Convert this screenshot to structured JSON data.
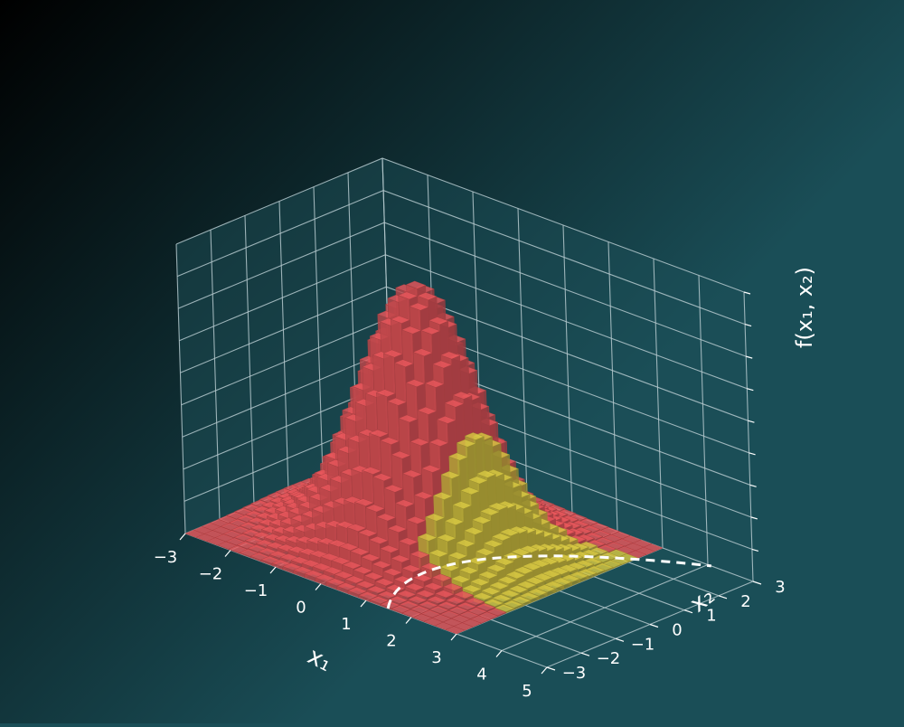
{
  "colors": {
    "background_dark": "#000000",
    "background_light": "#1a4e57",
    "pane_fill": "#1d5058",
    "grid": "#b4c8cc",
    "bar_outside": "#e8575c",
    "bar_inside": "#d8c843",
    "boundary": "#ffffff"
  },
  "chart_data": {
    "type": "bar3d",
    "title": "",
    "xlabel": "x₁",
    "ylabel": "x₂",
    "zlabel": "f(x₁, x₂)",
    "xlim": [
      -3,
      5
    ],
    "ylim": [
      -3,
      3
    ],
    "xticks": [
      "−3",
      "−2",
      "−1",
      "0",
      "1",
      "2",
      "3",
      "4",
      "5"
    ],
    "yticks": [
      "−3",
      "−2",
      "−1",
      "0",
      "1",
      "2",
      "3"
    ],
    "zticks_labeled": false,
    "grid": true,
    "density": {
      "kind": "bivariate-normal",
      "mean": [
        0,
        0
      ],
      "sd": [
        1,
        1
      ],
      "x_range": [
        -3,
        3
      ],
      "y_range": [
        -3,
        3
      ],
      "bins": 25
    },
    "series": [
      {
        "region": "outside"
      },
      {
        "region": "inside"
      }
    ],
    "boundary": {
      "style": "dashed"
    }
  }
}
